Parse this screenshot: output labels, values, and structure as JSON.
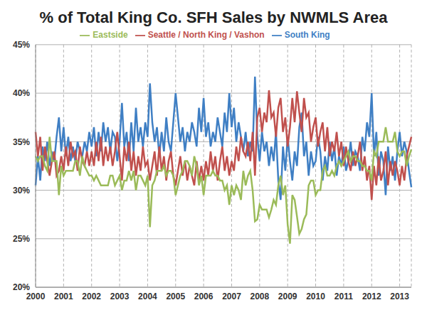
{
  "chart_data": {
    "type": "line",
    "title": "% of Total King Co. SFH Sales by NWMLS Area",
    "categories": [
      "2000",
      null,
      null,
      null,
      null,
      null,
      null,
      null,
      null,
      null,
      null,
      null,
      "2001",
      null,
      null,
      null,
      null,
      null,
      null,
      null,
      null,
      null,
      null,
      null,
      "2002",
      null,
      null,
      null,
      null,
      null,
      null,
      null,
      null,
      null,
      null,
      null,
      "2003",
      null,
      null,
      null,
      null,
      null,
      null,
      null,
      null,
      null,
      null,
      null,
      "2004",
      null,
      null,
      null,
      null,
      null,
      null,
      null,
      null,
      null,
      null,
      null,
      "2005",
      null,
      null,
      null,
      null,
      null,
      null,
      null,
      null,
      null,
      null,
      null,
      "2006",
      null,
      null,
      null,
      null,
      null,
      null,
      null,
      null,
      null,
      null,
      null,
      "2007",
      null,
      null,
      null,
      null,
      null,
      null,
      null,
      null,
      null,
      null,
      null,
      "2008",
      null,
      null,
      null,
      null,
      null,
      null,
      null,
      null,
      null,
      null,
      null,
      "2009",
      null,
      null,
      null,
      null,
      null,
      null,
      null,
      null,
      null,
      null,
      null,
      "2010",
      null,
      null,
      null,
      null,
      null,
      null,
      null,
      null,
      null,
      null,
      null,
      "2011",
      null,
      null,
      null,
      null,
      null,
      null,
      null,
      null,
      null,
      null,
      null,
      "2012",
      null,
      null,
      null,
      null,
      null,
      null,
      null,
      null,
      null,
      null,
      null,
      "2013",
      null,
      null,
      null,
      null,
      null
    ],
    "series": [
      {
        "name": "South King",
        "color": "#3f7fc4",
        "values": [
          30.5,
          33.5,
          31.0,
          34.5,
          33.0,
          35.0,
          32.5,
          34.0,
          33.0,
          35.5,
          37.5,
          34.0,
          36.5,
          33.5,
          35.5,
          33.0,
          34.5,
          33.0,
          35.0,
          34.0,
          33.5,
          35.0,
          34.0,
          36.0,
          34.5,
          36.5,
          33.5,
          36.0,
          34.0,
          37.0,
          35.0,
          36.5,
          34.0,
          36.0,
          35.5,
          33.0,
          35.0,
          39.0,
          34.5,
          36.0,
          33.0,
          37.0,
          34.0,
          38.5,
          35.0,
          36.5,
          34.5,
          37.0,
          35.5,
          41.0,
          37.0,
          35.0,
          36.5,
          33.5,
          36.0,
          34.0,
          37.5,
          35.0,
          34.0,
          37.0,
          40.0,
          37.5,
          35.0,
          36.5,
          34.0,
          36.0,
          35.0,
          37.0,
          36.0,
          34.5,
          38.5,
          36.0,
          39.5,
          35.5,
          37.0,
          34.5,
          36.0,
          35.0,
          37.5,
          36.0,
          34.5,
          38.0,
          36.0,
          40.0,
          36.5,
          38.5,
          35.0,
          37.0,
          35.5,
          34.0,
          36.0,
          33.5,
          35.0,
          34.0,
          41.7,
          35.5,
          33.0,
          36.0,
          34.0,
          35.0,
          32.5,
          34.5,
          33.0,
          36.0,
          31.0,
          29.0,
          34.5,
          32.0,
          35.5,
          33.0,
          31.0,
          34.0,
          32.5,
          36.5,
          38.0,
          33.5,
          35.0,
          31.5,
          34.0,
          32.5,
          33.0,
          35.5,
          34.0,
          31.0,
          33.5,
          32.0,
          35.0,
          33.0,
          34.5,
          31.5,
          33.5,
          32.5,
          34.5,
          32.0,
          33.0,
          35.0,
          32.5,
          34.0,
          33.5,
          32.0,
          35.5,
          34.0,
          37.0,
          35.5,
          40.0,
          33.5,
          36.0,
          31.5,
          34.0,
          33.0,
          29.5,
          34.5,
          32.0,
          33.5,
          31.0,
          34.0,
          36.0,
          33.5,
          35.0,
          34.0,
          32.0,
          30.3
        ]
      },
      {
        "name": "Seattle / North King / Vashon",
        "color": "#c0504d",
        "values": [
          36.0,
          33.5,
          35.5,
          32.0,
          34.5,
          33.0,
          31.5,
          33.0,
          34.0,
          31.5,
          32.0,
          33.5,
          32.0,
          34.5,
          32.5,
          35.0,
          33.5,
          34.0,
          32.0,
          34.5,
          33.0,
          32.5,
          34.0,
          32.5,
          34.0,
          32.5,
          35.0,
          33.0,
          35.5,
          32.5,
          34.5,
          33.0,
          34.5,
          32.5,
          34.0,
          36.0,
          33.5,
          31.0,
          34.5,
          33.0,
          35.0,
          32.0,
          34.0,
          31.5,
          33.5,
          32.0,
          34.5,
          32.5,
          33.0,
          31.0,
          32.5,
          34.0,
          31.5,
          34.5,
          32.0,
          33.5,
          31.0,
          33.0,
          34.0,
          31.5,
          30.5,
          32.0,
          33.5,
          31.5,
          33.0,
          31.0,
          32.5,
          31.5,
          30.5,
          33.0,
          31.0,
          32.5,
          31.0,
          33.0,
          31.5,
          34.0,
          32.0,
          33.5,
          31.0,
          33.0,
          34.5,
          32.0,
          33.5,
          31.5,
          33.0,
          32.0,
          34.5,
          33.0,
          35.5,
          34.0,
          33.5,
          35.0,
          33.0,
          36.0,
          31.5,
          37.5,
          38.5,
          36.0,
          38.0,
          37.0,
          40.3,
          37.5,
          38.0,
          35.5,
          38.5,
          39.5,
          36.0,
          37.5,
          34.5,
          36.5,
          39.5,
          37.0,
          40.2,
          38.0,
          36.0,
          39.5,
          37.5,
          38.0,
          35.0,
          36.5,
          37.5,
          34.5,
          36.0,
          37.0,
          34.0,
          36.5,
          33.5,
          35.0,
          34.0,
          36.0,
          33.5,
          35.0,
          32.5,
          34.5,
          33.0,
          32.0,
          34.0,
          32.5,
          33.5,
          35.0,
          32.0,
          33.5,
          31.0,
          32.5,
          29.0,
          32.5,
          30.5,
          33.5,
          31.0,
          32.0,
          34.0,
          30.5,
          33.0,
          31.5,
          33.0,
          32.0,
          30.5,
          32.5,
          31.0,
          33.5,
          34.5,
          35.5
        ]
      },
      {
        "name": "Eastside",
        "color": "#9bbb59",
        "values": [
          33.5,
          33.0,
          33.5,
          33.5,
          32.5,
          32.0,
          35.5,
          33.0,
          33.0,
          33.0,
          29.5,
          32.5,
          31.5,
          32.0,
          32.0,
          32.0,
          32.0,
          33.0,
          33.0,
          31.5,
          33.5,
          32.5,
          32.0,
          31.5,
          31.5,
          31.0,
          31.5,
          31.0,
          30.5,
          30.5,
          30.5,
          30.5,
          31.5,
          31.5,
          30.5,
          31.0,
          31.5,
          30.0,
          31.0,
          31.0,
          32.0,
          31.0,
          32.0,
          30.0,
          31.5,
          31.5,
          31.0,
          30.5,
          31.5,
          26.2,
          30.5,
          31.0,
          32.0,
          32.0,
          32.0,
          32.5,
          31.5,
          32.0,
          32.0,
          31.5,
          29.5,
          30.5,
          31.5,
          32.0,
          33.0,
          33.0,
          32.5,
          31.5,
          33.5,
          32.5,
          30.5,
          31.5,
          29.5,
          31.5,
          31.5,
          31.5,
          32.0,
          31.5,
          31.5,
          31.0,
          31.0,
          30.0,
          30.5,
          28.5,
          30.5,
          29.5,
          30.5,
          30.0,
          29.0,
          32.0,
          30.5,
          31.5,
          32.0,
          30.0,
          26.8,
          27.0,
          28.5,
          28.0,
          28.0,
          28.0,
          27.2,
          28.0,
          29.0,
          28.5,
          30.5,
          31.5,
          29.5,
          30.5,
          26.5,
          24.5,
          29.5,
          29.0,
          27.3,
          25.5,
          26.0,
          27.0,
          27.5,
          30.5,
          31.0,
          31.0,
          29.5,
          30.0,
          30.0,
          32.0,
          32.5,
          31.5,
          31.5,
          32.0,
          31.5,
          32.5,
          33.0,
          32.5,
          33.0,
          33.5,
          34.0,
          33.0,
          33.5,
          33.5,
          33.0,
          33.0,
          32.5,
          32.5,
          32.0,
          32.0,
          31.0,
          34.0,
          33.5,
          35.0,
          35.0,
          35.0,
          36.5,
          35.0,
          35.0,
          35.0,
          36.0,
          34.0,
          33.5,
          34.0,
          34.0,
          32.5,
          33.5,
          34.2
        ]
      }
    ],
    "ylim": [
      20,
      45
    ],
    "yticks": [
      {
        "value": 20,
        "label": "20%"
      },
      {
        "value": 25,
        "label": "25%"
      },
      {
        "value": 30,
        "label": "30%"
      },
      {
        "value": 35,
        "label": "35%"
      },
      {
        "value": 40,
        "label": "40%"
      },
      {
        "value": 45,
        "label": "45%"
      }
    ],
    "grid": true,
    "legend": "top"
  }
}
